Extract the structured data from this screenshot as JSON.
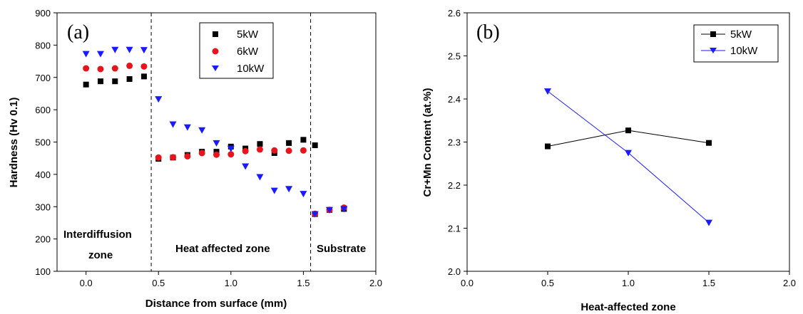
{
  "colors": {
    "s5": "#000000",
    "s6": "#e8141b",
    "s10": "#1a1aff"
  },
  "chart_data": [
    {
      "type": "scatter",
      "panel_label": "(a)",
      "xlabel": "Distance from surface (mm)",
      "ylabel": "Hardness (Hv 0.1)",
      "xlim": [
        -0.2,
        2.0
      ],
      "ylim": [
        100,
        900
      ],
      "xticks": [
        "0.0",
        "0.5",
        "1.0",
        "1.5",
        "2.0"
      ],
      "yticks": [
        "100",
        "200",
        "300",
        "400",
        "500",
        "600",
        "700",
        "800",
        "900"
      ],
      "zone_boundaries": [
        0.45,
        1.55
      ],
      "zones": [
        "Interdiffusion\nzone",
        "Heat affected zone",
        "Substrate"
      ],
      "legend_position": "top-center",
      "series": [
        {
          "name": "5kW",
          "marker": "square",
          "color": "#000000",
          "points": [
            [
              0.0,
              678
            ],
            [
              0.1,
              688
            ],
            [
              0.2,
              688
            ],
            [
              0.3,
              695
            ],
            [
              0.4,
              703
            ],
            [
              0.5,
              448
            ],
            [
              0.6,
              452
            ],
            [
              0.7,
              460
            ],
            [
              0.8,
              470
            ],
            [
              0.9,
              470
            ],
            [
              1.0,
              486
            ],
            [
              1.1,
              480
            ],
            [
              1.2,
              494
            ],
            [
              1.3,
              466
            ],
            [
              1.4,
              497
            ],
            [
              1.5,
              507
            ],
            [
              1.58,
              490
            ],
            [
              1.58,
              277
            ],
            [
              1.68,
              290
            ],
            [
              1.78,
              293
            ]
          ]
        },
        {
          "name": "6kW",
          "marker": "circle",
          "color": "#e8141b",
          "points": [
            [
              0.0,
              728
            ],
            [
              0.1,
              726
            ],
            [
              0.2,
              728
            ],
            [
              0.3,
              736
            ],
            [
              0.4,
              734
            ],
            [
              0.5,
              452
            ],
            [
              0.6,
              453
            ],
            [
              0.7,
              456
            ],
            [
              0.8,
              466
            ],
            [
              0.9,
              461
            ],
            [
              1.0,
              462
            ],
            [
              1.1,
              472
            ],
            [
              1.2,
              477
            ],
            [
              1.3,
              474
            ],
            [
              1.4,
              473
            ],
            [
              1.5,
              474
            ],
            [
              1.58,
              278
            ],
            [
              1.68,
              290
            ],
            [
              1.78,
              297
            ]
          ]
        },
        {
          "name": "10kW",
          "marker": "triangle-down",
          "color": "#1a1aff",
          "points": [
            [
              0.0,
              773
            ],
            [
              0.1,
              773
            ],
            [
              0.2,
              786
            ],
            [
              0.3,
              786
            ],
            [
              0.4,
              785
            ],
            [
              0.5,
              633
            ],
            [
              0.6,
              555
            ],
            [
              0.7,
              546
            ],
            [
              0.8,
              537
            ],
            [
              0.9,
              497
            ],
            [
              1.0,
              480
            ],
            [
              1.1,
              425
            ],
            [
              1.2,
              392
            ],
            [
              1.3,
              350
            ],
            [
              1.4,
              355
            ],
            [
              1.5,
              340
            ],
            [
              1.58,
              277
            ],
            [
              1.68,
              290
            ],
            [
              1.78,
              293
            ]
          ]
        }
      ]
    },
    {
      "type": "line",
      "panel_label": "(b)",
      "xlabel": "Heat-affected zone",
      "ylabel": "Cr+Mn Content (at.%)",
      "xlim": [
        0.0,
        2.0
      ],
      "ylim": [
        2.0,
        2.6
      ],
      "xticks": [
        "0.0",
        "0.5",
        "1.0",
        "1.5",
        "2.0"
      ],
      "yticks": [
        "2.0",
        "2.1",
        "2.2",
        "2.3",
        "2.4",
        "2.5",
        "2.6"
      ],
      "legend_position": "top-right",
      "series": [
        {
          "name": "5kW",
          "marker": "square",
          "color": "#000000",
          "x": [
            0.5,
            1.0,
            1.5
          ],
          "y": [
            2.29,
            2.327,
            2.298
          ]
        },
        {
          "name": "10kW",
          "marker": "triangle-down",
          "color": "#1a1aff",
          "x": [
            0.5,
            1.0,
            1.5
          ],
          "y": [
            2.418,
            2.275,
            2.113
          ]
        }
      ]
    }
  ]
}
